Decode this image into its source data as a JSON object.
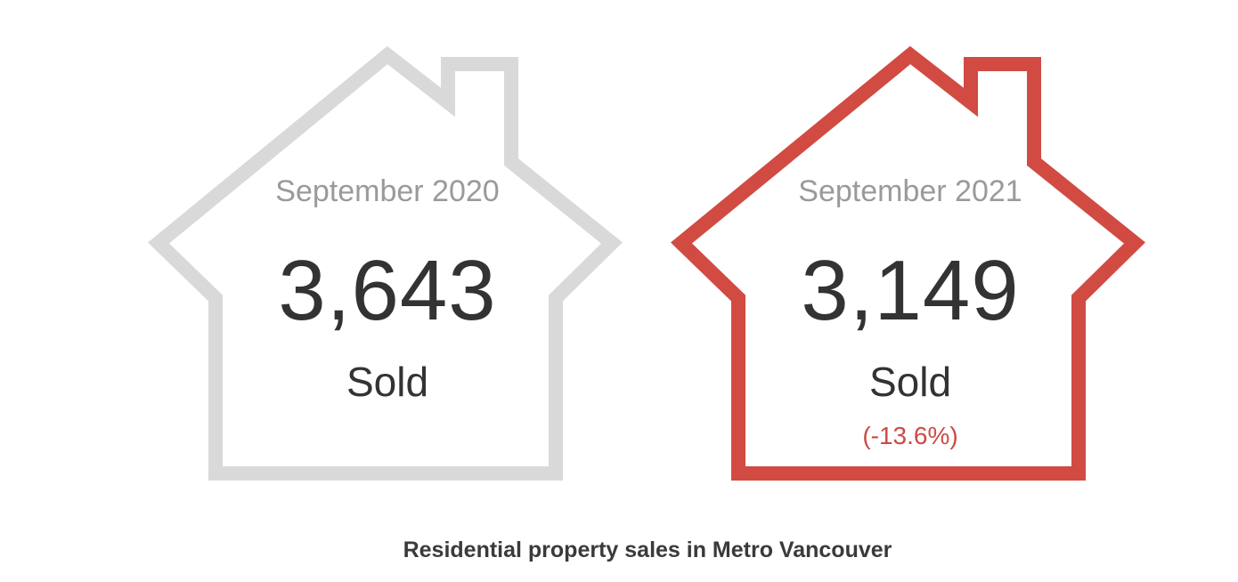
{
  "chart_data": {
    "type": "table",
    "title": "Residential property sales in Metro Vancouver",
    "items": [
      {
        "period": "September 2020",
        "value": 3643,
        "value_label": "3,643",
        "unit": "Sold",
        "change": "",
        "color": "#d9d9d9"
      },
      {
        "period": "September 2021",
        "value": 3149,
        "value_label": "3,149",
        "unit": "Sold",
        "change": "(-13.6%)",
        "color": "#d14b43"
      }
    ]
  }
}
